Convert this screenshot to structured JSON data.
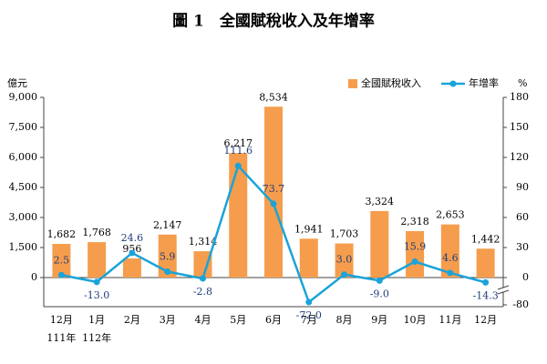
{
  "chart_data": {
    "type": "bar_line",
    "title": "圖 1　全國賦稅收入及年增率",
    "y_axis_label": "億元",
    "y2_axis_label": "%",
    "categories": [
      "12月",
      "1月",
      "2月",
      "3月",
      "4月",
      "5月",
      "6月",
      "7月",
      "8月",
      "9月",
      "10月",
      "11月",
      "12月"
    ],
    "year_labels": [
      "111年",
      "112年",
      null,
      null,
      null,
      null,
      null,
      null,
      null,
      null,
      null,
      null,
      null
    ],
    "series": [
      {
        "name": "全國賦稅收入",
        "type": "bar",
        "color": "#f59d4c",
        "values": [
          1682,
          1768,
          956,
          2147,
          1314,
          6217,
          8534,
          1941,
          1703,
          3324,
          2318,
          2653,
          1442
        ],
        "value_labels": [
          "1,682",
          "1,768",
          "956",
          "2,147",
          "1,314",
          "6,217",
          "8,534",
          "1,941",
          "1,703",
          "3,324",
          "2,318",
          "2,653",
          "1,442"
        ]
      },
      {
        "name": "年增率",
        "type": "line",
        "axis": "y2",
        "color": "#1aa3d9",
        "values": [
          2.5,
          -13.0,
          24.6,
          5.9,
          -2.8,
          111.6,
          73.7,
          -72.0,
          3.0,
          -9.0,
          15.9,
          4.6,
          -14.3
        ],
        "value_labels": [
          "2.5",
          "-13.0",
          "24.6",
          "5.9",
          "-2.8",
          "111.6",
          "73.7",
          "-72.0",
          "3.0",
          "-9.0",
          "15.9",
          "4.6",
          "-14.3"
        ]
      }
    ],
    "ylim": [
      0,
      9000
    ],
    "yticks": [
      0,
      {
        "value": 1500,
        "label": "1,500"
      },
      {
        "value": 3000,
        "label": "3,000"
      },
      {
        "value": 4500,
        "label": "4,500"
      },
      {
        "value": 6000,
        "label": "6,000"
      },
      {
        "value": 7500,
        "label": "7,500"
      },
      {
        "value": 9000,
        "label": "9,000"
      }
    ],
    "y2lim": [
      -80,
      180
    ],
    "y2ticks": [
      -80,
      0,
      30,
      60,
      90,
      120,
      150,
      180
    ],
    "y2_axis_break": true,
    "legend": "top-right"
  }
}
